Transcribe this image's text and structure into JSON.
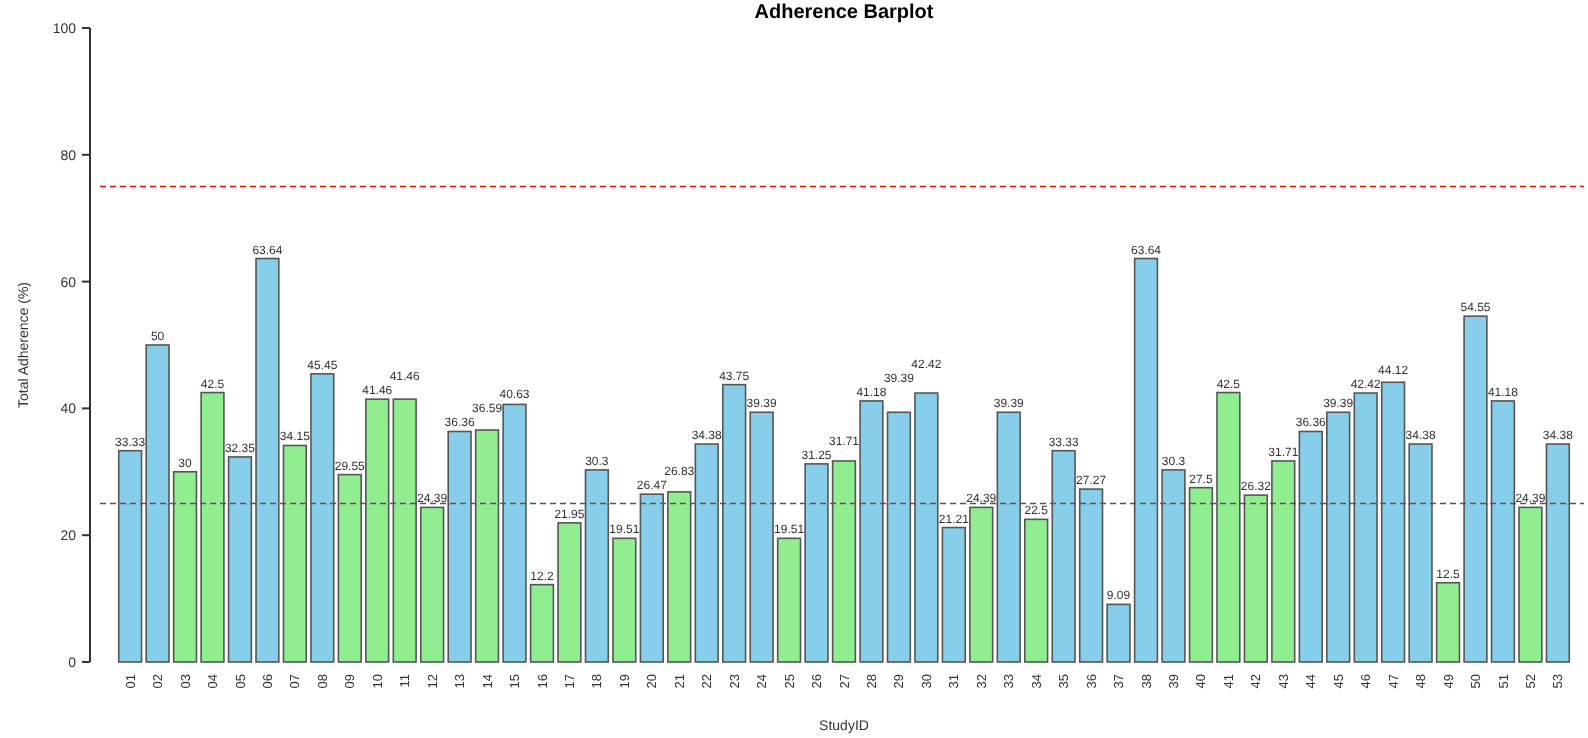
{
  "chart_data": {
    "type": "bar",
    "title": "Adherence Barplot",
    "xlabel": "StudyID",
    "ylabel": "Total Adherence (%)",
    "categories": [
      "01",
      "02",
      "03",
      "04",
      "05",
      "06",
      "07",
      "08",
      "09",
      "10",
      "11",
      "12",
      "13",
      "14",
      "15",
      "16",
      "17",
      "18",
      "19",
      "20",
      "21",
      "22",
      "23",
      "24",
      "25",
      "26",
      "27",
      "28",
      "29",
      "30",
      "31",
      "32",
      "33",
      "34",
      "35",
      "36",
      "37",
      "38",
      "39",
      "40",
      "41",
      "42",
      "43",
      "44",
      "45",
      "46",
      "47",
      "48",
      "49",
      "50",
      "51",
      "52",
      "53"
    ],
    "values": [
      33.33,
      50,
      30,
      42.5,
      32.35,
      63.64,
      34.15,
      45.45,
      29.55,
      41.46,
      41.46,
      24.39,
      36.36,
      36.59,
      40.63,
      12.2,
      21.95,
      30.3,
      19.51,
      26.47,
      26.83,
      34.38,
      43.75,
      39.39,
      19.51,
      31.25,
      31.71,
      41.18,
      39.39,
      42.42,
      21.21,
      24.39,
      39.39,
      22.5,
      33.33,
      27.27,
      9.09,
      63.64,
      30.3,
      27.5,
      42.5,
      26.32,
      31.71,
      36.36,
      39.39,
      42.42,
      44.12,
      34.38,
      12.5,
      54.55,
      41.18,
      24.39,
      34.38
    ],
    "colors": [
      "#87ceeb",
      "#87ceeb",
      "#90ee90",
      "#90ee90",
      "#87ceeb",
      "#87ceeb",
      "#90ee90",
      "#87ceeb",
      "#90ee90",
      "#90ee90",
      "#90ee90",
      "#90ee90",
      "#87ceeb",
      "#90ee90",
      "#87ceeb",
      "#90ee90",
      "#90ee90",
      "#87ceeb",
      "#90ee90",
      "#87ceeb",
      "#90ee90",
      "#87ceeb",
      "#87ceeb",
      "#87ceeb",
      "#90ee90",
      "#87ceeb",
      "#90ee90",
      "#87ceeb",
      "#87ceeb",
      "#87ceeb",
      "#87ceeb",
      "#90ee90",
      "#87ceeb",
      "#90ee90",
      "#87ceeb",
      "#87ceeb",
      "#87ceeb",
      "#87ceeb",
      "#87ceeb",
      "#90ee90",
      "#90ee90",
      "#90ee90",
      "#90ee90",
      "#87ceeb",
      "#87ceeb",
      "#87ceeb",
      "#87ceeb",
      "#87ceeb",
      "#90ee90",
      "#87ceeb",
      "#87ceeb",
      "#90ee90",
      "#87ceeb"
    ],
    "ylim": [
      0,
      100
    ],
    "yticks": [
      0,
      20,
      40,
      60,
      80,
      100
    ],
    "ref_lines": [
      {
        "axis": "y",
        "value": 75,
        "color": "#ff0000",
        "line_style": "dashed"
      },
      {
        "axis": "y",
        "value": 25,
        "color": "#555555",
        "line_style": "dashed"
      }
    ],
    "data_labels": true,
    "grid": false
  }
}
